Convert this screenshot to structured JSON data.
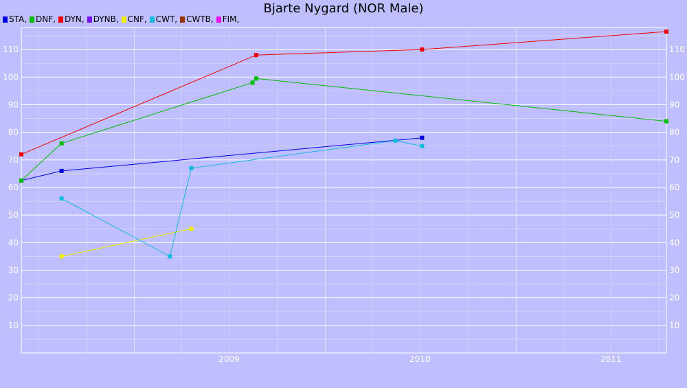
{
  "chart_data": {
    "type": "line",
    "title": "Bjarte Nygard (NOR Male)",
    "xlabel": "",
    "ylabel": "",
    "x_ticks": [
      "2009",
      "2010",
      "2011"
    ],
    "x_range": [
      "2008-05-30",
      "2011-10-15"
    ],
    "ylim": [
      0,
      118
    ],
    "y_ticks": [
      10,
      20,
      30,
      40,
      50,
      60,
      70,
      80,
      90,
      100,
      110
    ],
    "grid": true,
    "legend_position": "top-left",
    "legend": [
      {
        "name": "STA,",
        "color": "#0000dd"
      },
      {
        "name": "DNF,",
        "color": "#00bb00"
      },
      {
        "name": "DYN,",
        "color": "#ee0000"
      },
      {
        "name": "DYNB,",
        "color": "#7711ee"
      },
      {
        "name": "CNF,",
        "color": "#eeee00"
      },
      {
        "name": "CWT,",
        "color": "#11bbdd"
      },
      {
        "name": "CWTB,",
        "color": "#993300"
      },
      {
        "name": "FIM,",
        "color": "#ee11ee"
      }
    ],
    "series": [
      {
        "name": "STA,",
        "color": "#0000dd",
        "points": [
          {
            "x": "2008-05-30",
            "y": 62.5
          },
          {
            "x": "2008-08-15",
            "y": 66
          },
          {
            "x": "2010-07-05",
            "y": 78
          }
        ]
      },
      {
        "name": "DNF,",
        "color": "#00bb00",
        "points": [
          {
            "x": "2008-05-30",
            "y": 62.5
          },
          {
            "x": "2008-08-15",
            "y": 76
          },
          {
            "x": "2009-08-15",
            "y": 98
          },
          {
            "x": "2009-08-22",
            "y": 99.5
          },
          {
            "x": "2011-10-15",
            "y": 84
          }
        ]
      },
      {
        "name": "DYN,",
        "color": "#ee0000",
        "points": [
          {
            "x": "2008-05-30",
            "y": 72
          },
          {
            "x": "2009-08-22",
            "y": 108
          },
          {
            "x": "2010-07-05",
            "y": 110
          },
          {
            "x": "2011-10-15",
            "y": 116.5
          }
        ]
      },
      {
        "name": "CNF,",
        "color": "#eeee00",
        "points": [
          {
            "x": "2008-08-15",
            "y": 35
          },
          {
            "x": "2009-04-20",
            "y": 45
          }
        ]
      },
      {
        "name": "CWT,",
        "color": "#11bbdd",
        "points": [
          {
            "x": "2008-08-15",
            "y": 56
          },
          {
            "x": "2009-03-10",
            "y": 35
          },
          {
            "x": "2009-04-20",
            "y": 67
          },
          {
            "x": "2010-05-15",
            "y": 77
          },
          {
            "x": "2010-07-05",
            "y": 75
          }
        ]
      }
    ]
  }
}
